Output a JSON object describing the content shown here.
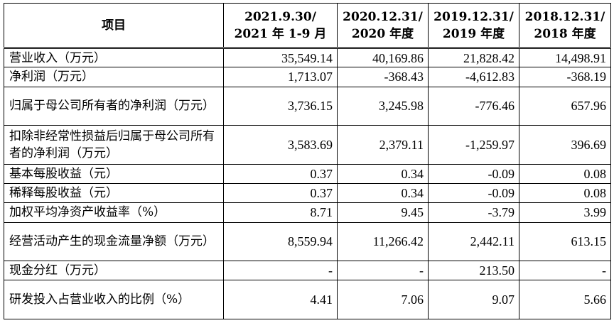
{
  "table": {
    "header": {
      "item": "项目",
      "columns": [
        {
          "line1": "2021.9.30/",
          "line2": "2021 年 1-9 月"
        },
        {
          "line1": "2020.12.31/",
          "line2": "2020 年度"
        },
        {
          "line1": "2019.12.31/",
          "line2": "2019 年度"
        },
        {
          "line1": "2018.12.31/",
          "line2": "2018 年度"
        }
      ]
    },
    "rows": [
      {
        "label": "营业收入（万元）",
        "values": [
          "35,549.14",
          "40,169.86",
          "21,828.42",
          "14,498.91"
        ]
      },
      {
        "label": "净利润（万元）",
        "values": [
          "1,713.07",
          "-368.43",
          "-4,612.83",
          "-368.19"
        ]
      },
      {
        "label": "归属于母公司所有者的净利润（万元）",
        "values": [
          "3,736.15",
          "3,245.98",
          "-776.46",
          "657.96"
        ]
      },
      {
        "label": "扣除非经常性损益后归属于母公司所有者的净利润（万元）",
        "values": [
          "3,583.69",
          "2,379.11",
          "-1,259.97",
          "396.69"
        ]
      },
      {
        "label": "基本每股收益（元）",
        "values": [
          "0.37",
          "0.34",
          "-0.09",
          "0.08"
        ]
      },
      {
        "label": "稀释每股收益（元）",
        "values": [
          "0.37",
          "0.34",
          "-0.09",
          "0.08"
        ]
      },
      {
        "label": "加权平均净资产收益率（%）",
        "values": [
          "8.71",
          "9.45",
          "-3.79",
          "3.99"
        ]
      },
      {
        "label": "经营活动产生的现金流量净额（万元）",
        "values": [
          "8,559.94",
          "11,266.42",
          "2,442.11",
          "613.15"
        ]
      },
      {
        "label": "现金分红（万元）",
        "values": [
          "-",
          "-",
          "213.50",
          "-"
        ]
      },
      {
        "label": "研发投入占营业收入的比例（%）",
        "values": [
          "4.41",
          "7.06",
          "9.07",
          "5.66"
        ]
      }
    ]
  }
}
